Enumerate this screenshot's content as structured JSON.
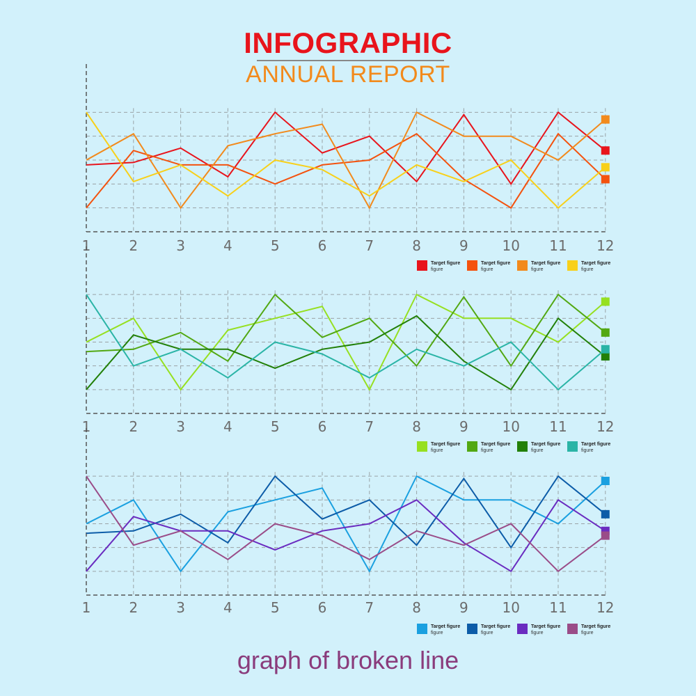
{
  "page": {
    "title": "INFOGRAPHIC",
    "subtitle": "ANNUAL REPORT",
    "footer": "graph of broken line",
    "colors": {
      "background": "#d2f1fb",
      "title": "#e8141c",
      "subtitle": "#f28a1c",
      "footer": "#8a3c7c",
      "tick": "#6b6b6b",
      "grid": "#9aa3a6"
    }
  },
  "chart_data": [
    {
      "type": "line",
      "x": [
        1,
        2,
        3,
        4,
        5,
        6,
        7,
        8,
        9,
        10,
        11,
        12
      ],
      "ylim": [
        0,
        6
      ],
      "grid": true,
      "legend": "bottom-right",
      "series": [
        {
          "name": "Target figure",
          "sub": "figure",
          "color": "#e8141c",
          "values": [
            2.8,
            2.9,
            3.5,
            2.3,
            5.0,
            3.3,
            4.0,
            2.1,
            4.9,
            2.0,
            5.0,
            3.4
          ]
        },
        {
          "name": "Target figure",
          "sub": "figure",
          "color": "#f4520e",
          "values": [
            1.0,
            3.4,
            2.8,
            2.8,
            2.0,
            2.8,
            3.0,
            4.1,
            2.2,
            1.0,
            4.1,
            2.2
          ]
        },
        {
          "name": "Target figure",
          "sub": "figure",
          "color": "#f28a1c",
          "values": [
            3.0,
            4.1,
            1.0,
            3.6,
            4.1,
            4.5,
            1.0,
            5.0,
            4.0,
            4.0,
            3.0,
            4.7
          ]
        },
        {
          "name": "Target figure",
          "sub": "figure",
          "color": "#f8d01a",
          "values": [
            5.0,
            2.1,
            2.8,
            1.5,
            3.0,
            2.6,
            1.5,
            2.8,
            2.1,
            3.0,
            1.0,
            2.7
          ]
        }
      ]
    },
    {
      "type": "line",
      "x": [
        1,
        2,
        3,
        4,
        5,
        6,
        7,
        8,
        9,
        10,
        11,
        12
      ],
      "ylim": [
        0,
        6
      ],
      "grid": true,
      "legend": "bottom-right",
      "series": [
        {
          "name": "Target figure",
          "sub": "figure",
          "color": "#96e020",
          "values": [
            3.0,
            4.0,
            1.0,
            3.5,
            4.0,
            4.5,
            1.0,
            5.0,
            4.0,
            4.0,
            3.0,
            4.7
          ]
        },
        {
          "name": "Target figure",
          "sub": "figure",
          "color": "#52a812",
          "values": [
            2.6,
            2.7,
            3.4,
            2.2,
            5.0,
            3.2,
            4.0,
            2.0,
            4.9,
            2.0,
            5.0,
            3.4
          ]
        },
        {
          "name": "Target figure",
          "sub": "figure",
          "color": "#228008",
          "values": [
            1.0,
            3.3,
            2.7,
            2.7,
            1.9,
            2.7,
            3.0,
            4.1,
            2.2,
            1.0,
            4.0,
            2.4
          ]
        },
        {
          "name": "Target figure",
          "sub": "figure",
          "color": "#2ab4a6",
          "values": [
            5.0,
            2.0,
            2.7,
            1.5,
            3.0,
            2.5,
            1.5,
            2.7,
            2.0,
            3.0,
            1.0,
            2.7
          ]
        }
      ]
    },
    {
      "type": "line",
      "x": [
        1,
        2,
        3,
        4,
        5,
        6,
        7,
        8,
        9,
        10,
        11,
        12
      ],
      "ylim": [
        0,
        6
      ],
      "grid": true,
      "legend": "bottom-right",
      "series": [
        {
          "name": "Target figure",
          "sub": "figure",
          "color": "#1aa0e0",
          "values": [
            3.0,
            4.0,
            1.0,
            3.5,
            4.0,
            4.5,
            1.0,
            5.0,
            4.0,
            4.0,
            3.0,
            4.8
          ]
        },
        {
          "name": "Target figure",
          "sub": "figure",
          "color": "#0c5ca8",
          "values": [
            2.6,
            2.7,
            3.4,
            2.2,
            5.0,
            3.2,
            4.0,
            2.1,
            4.9,
            2.0,
            5.0,
            3.4
          ]
        },
        {
          "name": "Target figure",
          "sub": "figure",
          "color": "#6a2cc0",
          "values": [
            1.0,
            3.3,
            2.7,
            2.7,
            1.9,
            2.7,
            3.0,
            4.0,
            2.2,
            1.0,
            4.0,
            2.7
          ]
        },
        {
          "name": "Target figure",
          "sub": "figure",
          "color": "#9a4c88",
          "values": [
            5.0,
            2.1,
            2.7,
            1.5,
            3.0,
            2.5,
            1.5,
            2.7,
            2.1,
            3.0,
            1.0,
            2.5
          ]
        }
      ]
    }
  ]
}
